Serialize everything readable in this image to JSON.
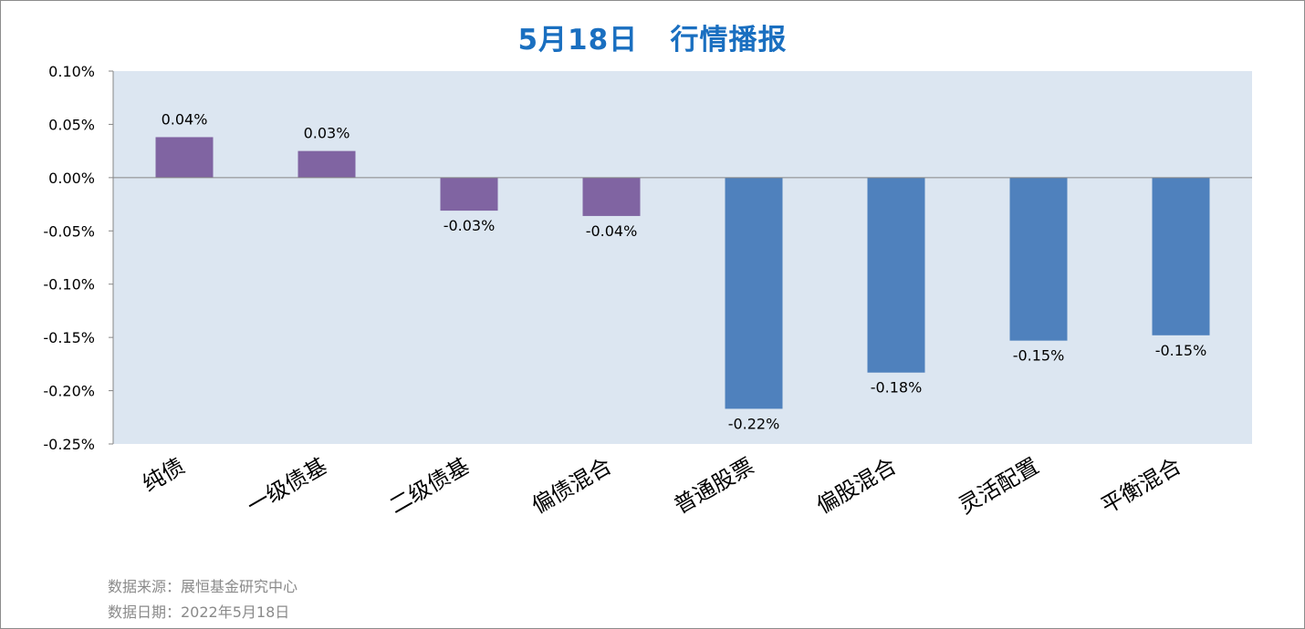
{
  "chart_data": {
    "type": "bar",
    "title": "5月18日   行情播报",
    "categories": [
      "纯债",
      "一级债基",
      "二级债基",
      "偏债混合",
      "普通股票",
      "偏股混合",
      "灵活配置",
      "平衡混合"
    ],
    "values": [
      0.038,
      0.025,
      -0.031,
      -0.036,
      -0.217,
      -0.183,
      -0.153,
      -0.148
    ],
    "data_labels": [
      "0.04%",
      "0.03%",
      "-0.03%",
      "-0.04%",
      "-0.22%",
      "-0.18%",
      "-0.15%",
      "-0.15%"
    ],
    "ylim": [
      -0.25,
      0.1
    ],
    "yticks": [
      0.1,
      0.05,
      0.0,
      -0.05,
      -0.1,
      -0.15,
      -0.2,
      -0.25
    ],
    "ytick_labels": [
      "0.10%",
      "0.05%",
      "0.00%",
      "-0.05%",
      "-0.10%",
      "-0.15%",
      "-0.20%",
      "-0.25%"
    ],
    "units": "%",
    "grid": false,
    "xlabel": "",
    "ylabel": "",
    "colors": {
      "plot_background": "#dce6f1",
      "bond_bars": "#8064a2",
      "equity_bars": "#4f81bd",
      "title": "#1a6fc0",
      "footer": "#8a8a8a"
    },
    "bar_color_groups": [
      "bond_bars",
      "bond_bars",
      "bond_bars",
      "bond_bars",
      "equity_bars",
      "equity_bars",
      "equity_bars",
      "equity_bars"
    ]
  },
  "footer": {
    "source": "数据来源：展恒基金研究中心",
    "date": "数据日期：2022年5月18日"
  }
}
